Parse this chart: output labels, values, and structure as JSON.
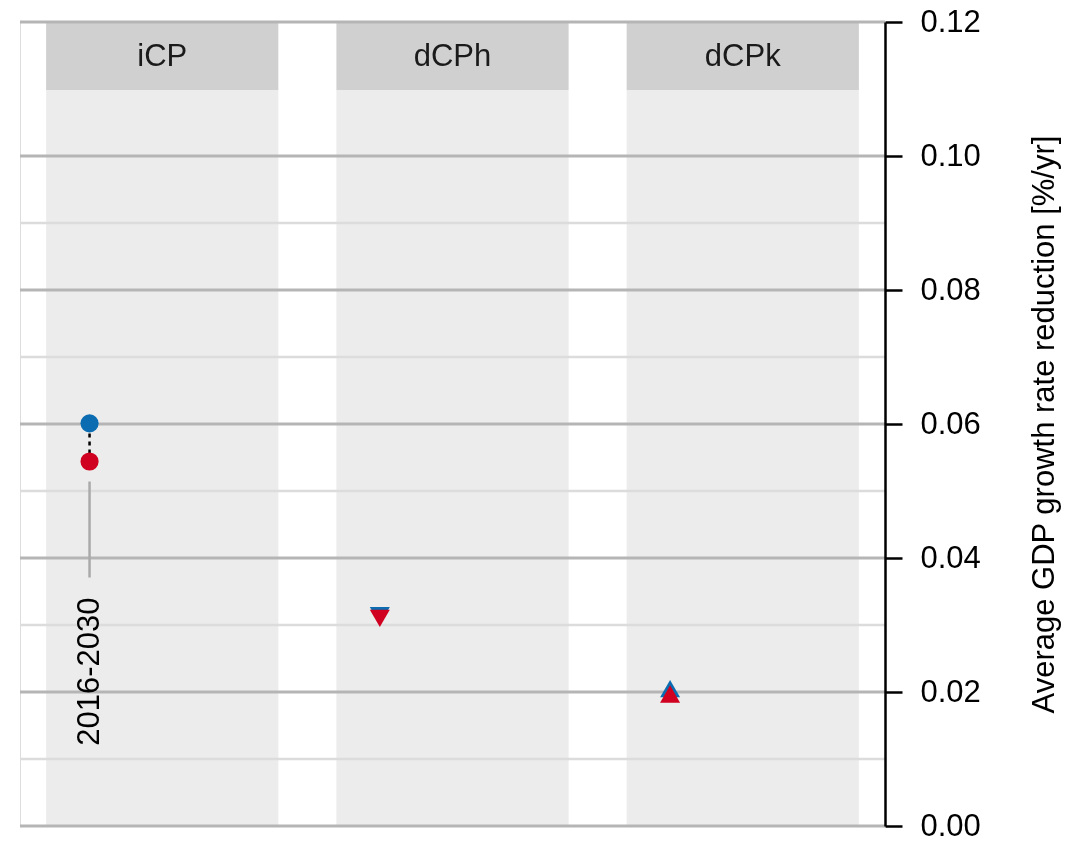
{
  "chart_data": {
    "type": "scatter",
    "categories": [
      "iCP",
      "dCPh",
      "dCPk"
    ],
    "ylabel": "Average GDP growth rate reduction [%/yr]",
    "series": [
      {
        "color": "#0b6cb1",
        "marker": "circle",
        "x": [
          "iCP"
        ],
        "values": [
          0.0601
        ]
      },
      {
        "color": "#d00020",
        "marker": "circle",
        "x": [
          "iCP"
        ],
        "values": [
          0.0544
        ]
      },
      {
        "color": "#0b6cb1",
        "marker": "triangle-down",
        "x": [
          "dCPh"
        ],
        "values": [
          0.0314
        ]
      },
      {
        "color": "#d00020",
        "marker": "triangle-down",
        "x": [
          "dCPh"
        ],
        "values": [
          0.031
        ]
      },
      {
        "color": "#0b6cb1",
        "marker": "triangle",
        "x": [
          "dCPk"
        ],
        "values": [
          0.0205
        ]
      },
      {
        "color": "#d00020",
        "marker": "triangle",
        "x": [
          "dCPk"
        ],
        "values": [
          0.0197
        ]
      }
    ],
    "ylim": [
      0,
      0.12
    ],
    "yticks": [
      {
        "value": 0,
        "label": "0.00"
      },
      {
        "value": 0.01,
        "label": null
      },
      0.02,
      {
        "value": 0.03,
        "label": null
      },
      0.04,
      {
        "value": 0.05,
        "label": null
      },
      0.06,
      {
        "value": 0.07,
        "label": null
      },
      0.08,
      {
        "value": 0.09,
        "label": null
      },
      {
        "value": 0.1,
        "label": "0.10"
      },
      {
        "value": 0.12,
        "label": "0.12"
      }
    ],
    "grid": "y",
    "bands": [
      {
        "axis": "x",
        "from": "iCP",
        "to": "iCP",
        "color": "#ececec"
      },
      {
        "axis": "x",
        "from": "dCPh",
        "to": "dCPh",
        "color": "#ececec"
      },
      {
        "axis": "x",
        "from": "dCPk",
        "to": "dCPk",
        "color": "#ececec"
      }
    ],
    "annotations": [
      "2016-2030"
    ]
  }
}
